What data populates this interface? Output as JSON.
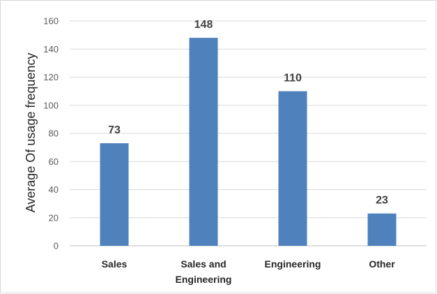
{
  "chart_data": {
    "type": "bar",
    "title": "",
    "xlabel": "",
    "ylabel": "Average Of usage frequency",
    "categories": [
      [
        "Sales"
      ],
      [
        "Sales and",
        "Engineering"
      ],
      [
        "Engineering"
      ],
      [
        "Other"
      ]
    ],
    "values": [
      73,
      148,
      110,
      23
    ],
    "ylim": [
      0,
      160
    ],
    "yticks": [
      0,
      20,
      40,
      60,
      80,
      100,
      120,
      140,
      160
    ],
    "grid": true,
    "legend": "none",
    "colors": {
      "bar": "#4f81bd",
      "grid": "#d9d9d9",
      "axis": "#bfbfbf"
    }
  }
}
